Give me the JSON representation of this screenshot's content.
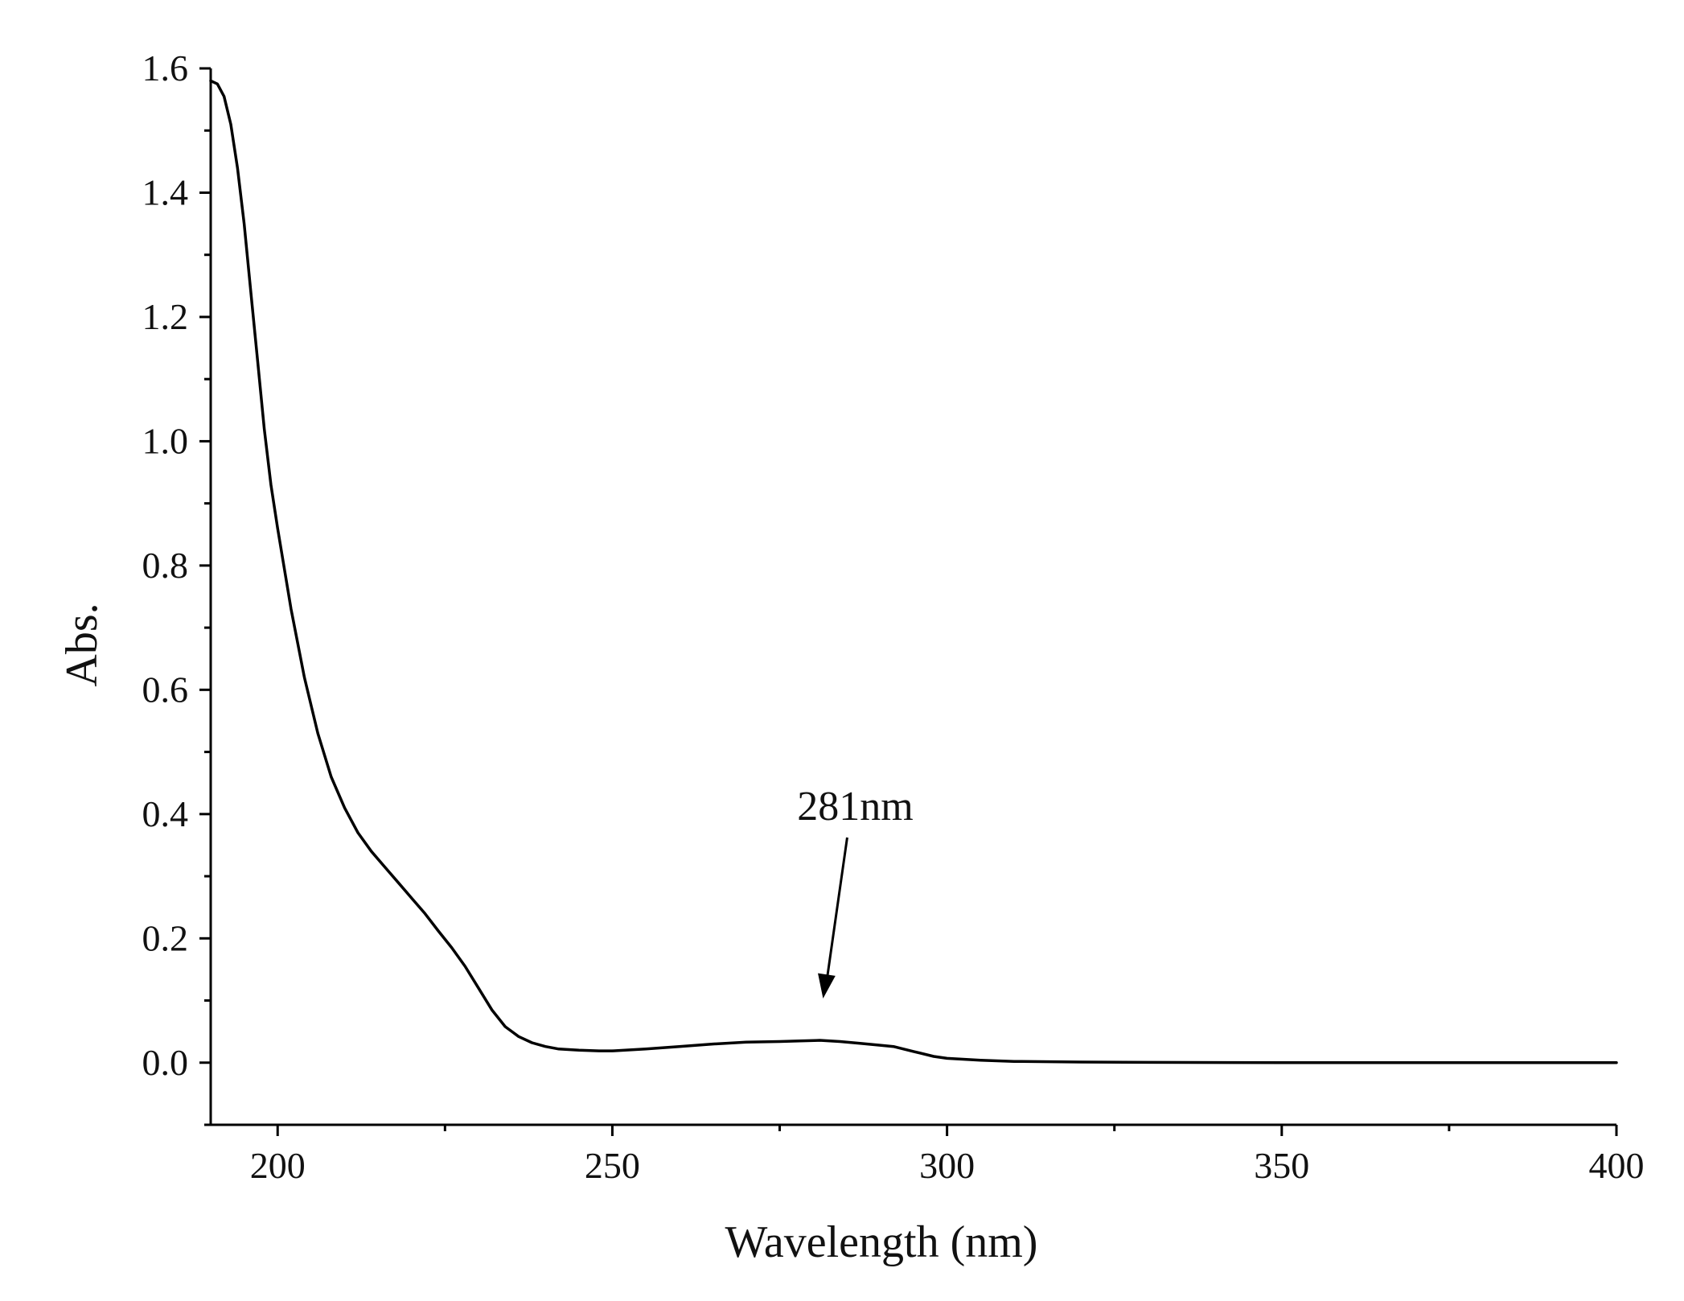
{
  "chart_data": {
    "type": "line",
    "title": "",
    "xlabel": "Wavelength (nm)",
    "ylabel": "Abs.",
    "xlim": [
      190,
      400
    ],
    "ylim": [
      -0.1,
      1.6
    ],
    "xticks": [
      200,
      250,
      300,
      350,
      400
    ],
    "xtick_labels": [
      "200",
      "250",
      "300",
      "350",
      "400"
    ],
    "yticks": [
      0.0,
      0.2,
      0.4,
      0.6,
      0.8,
      1.0,
      1.2,
      1.4,
      1.6
    ],
    "ytick_labels": [
      "0.0",
      "0.2",
      "0.4",
      "0.6",
      "0.8",
      "1.0",
      "1.2",
      "1.4",
      "1.6"
    ],
    "grid": false,
    "legend": "none",
    "line_color": "#000000",
    "series": [
      {
        "x": [
          190,
          191,
          192,
          193,
          194,
          195,
          196,
          197,
          198,
          199,
          200,
          202,
          204,
          206,
          208,
          210,
          212,
          214,
          216,
          218,
          220,
          222,
          224,
          226,
          228,
          230,
          232,
          234,
          236,
          238,
          240,
          242,
          245,
          248,
          250,
          255,
          260,
          265,
          270,
          275,
          278,
          281,
          284,
          287,
          290,
          292,
          295,
          298,
          300,
          305,
          310,
          320,
          330,
          350,
          375,
          400
        ],
        "y": [
          1.58,
          1.575,
          1.555,
          1.51,
          1.44,
          1.35,
          1.24,
          1.13,
          1.02,
          0.93,
          0.86,
          0.73,
          0.62,
          0.53,
          0.46,
          0.41,
          0.37,
          0.34,
          0.315,
          0.29,
          0.265,
          0.24,
          0.212,
          0.185,
          0.155,
          0.12,
          0.085,
          0.058,
          0.042,
          0.032,
          0.026,
          0.022,
          0.02,
          0.019,
          0.019,
          0.022,
          0.026,
          0.03,
          0.033,
          0.034,
          0.035,
          0.036,
          0.034,
          0.031,
          0.028,
          0.026,
          0.018,
          0.01,
          0.007,
          0.004,
          0.002,
          0.001,
          0.0005,
          0.0,
          0.0,
          0.0
        ]
      }
    ],
    "annotations": [
      {
        "text": "281nm",
        "x": 281,
        "y": 0.036
      }
    ]
  }
}
